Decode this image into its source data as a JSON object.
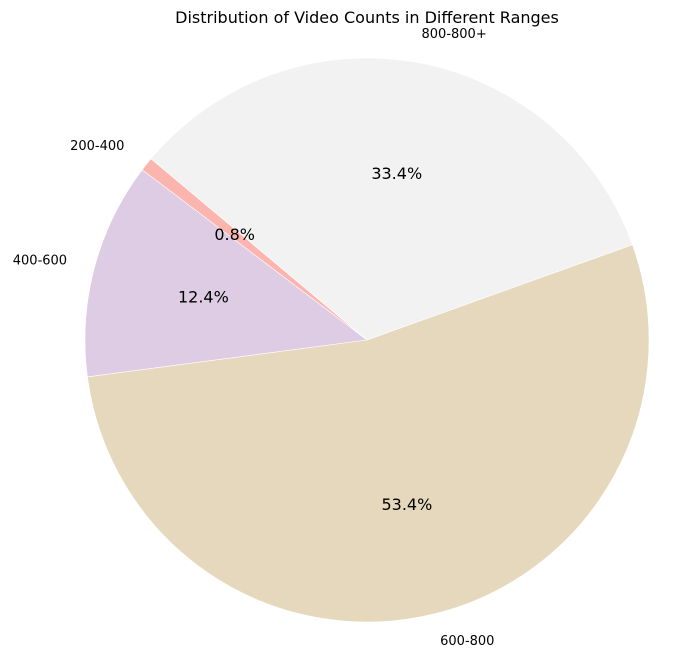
{
  "chart_data": {
    "type": "pie",
    "title": "Distribution of Video Counts in Different Ranges",
    "slices": [
      {
        "label": "200-400",
        "value": 0.8,
        "pct_label": "0.8%",
        "color": "#fbb4ae"
      },
      {
        "label": "400-600",
        "value": 12.4,
        "pct_label": "12.4%",
        "color": "#decbe4"
      },
      {
        "label": "600-800",
        "value": 53.4,
        "pct_label": "53.4%",
        "color": "#e5d8bd"
      },
      {
        "label": "800-800+",
        "value": 33.4,
        "pct_label": "33.4%",
        "color": "#f2f2f2"
      }
    ],
    "start_angle_deg": 140,
    "direction": "counterclockwise",
    "legend": "none",
    "grid": false
  }
}
